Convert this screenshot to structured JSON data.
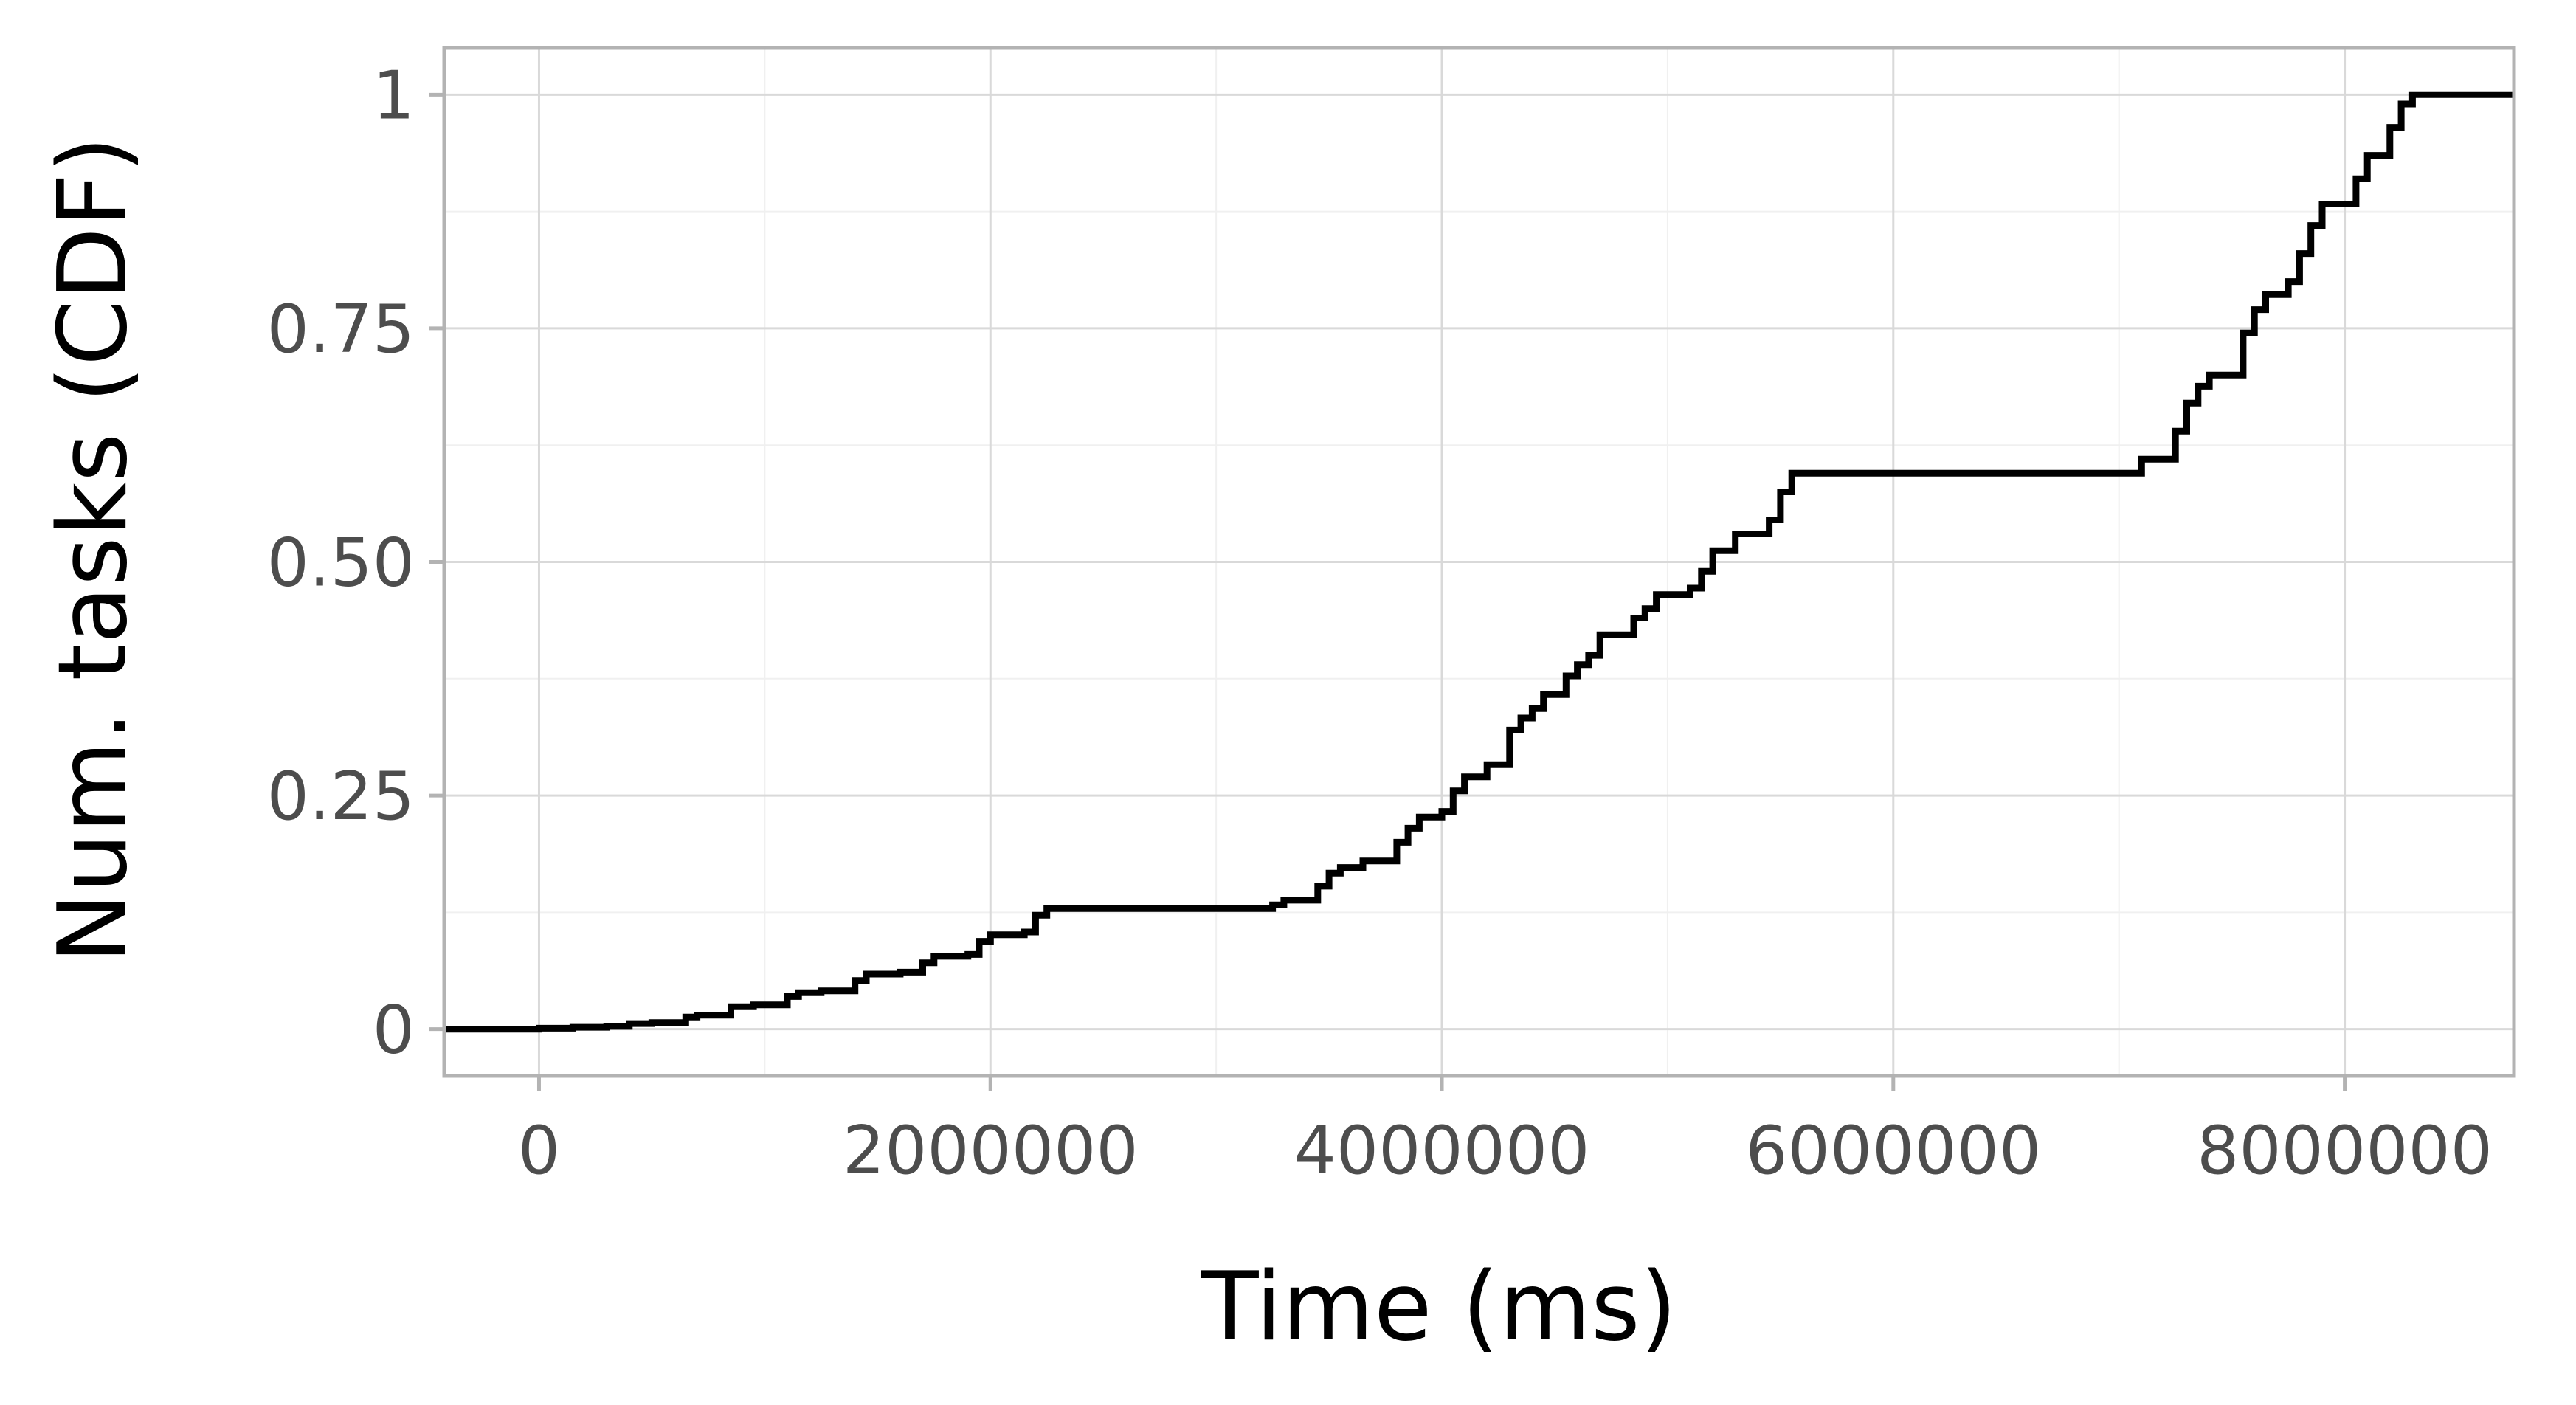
{
  "chart_data": {
    "type": "line",
    "step": true,
    "xlabel": "Time (ms)",
    "ylabel": "Num. tasks (CDF)",
    "xlim": [
      -420000,
      8750000
    ],
    "ylim": [
      -0.05,
      1.05
    ],
    "x_ticks": [
      {
        "value": 0,
        "label": "0"
      },
      {
        "value": 2000000,
        "label": "2000000"
      },
      {
        "value": 4000000,
        "label": "4000000"
      },
      {
        "value": 6000000,
        "label": "6000000"
      },
      {
        "value": 8000000,
        "label": "8000000"
      }
    ],
    "y_ticks": [
      {
        "value": 0,
        "label": "0"
      },
      {
        "value": 0.25,
        "label": "0.25"
      },
      {
        "value": 0.5,
        "label": "0.50"
      },
      {
        "value": 0.75,
        "label": "0.75"
      },
      {
        "value": 1,
        "label": "1"
      }
    ],
    "grid": true,
    "legend": "none",
    "colors": {
      "line": "#000000",
      "grid_major": "#d9d9d9",
      "grid_minor": "#f0f0f0",
      "panel_border": "#b3b3b3",
      "tick_label": "#4d4d4d",
      "axis_title": "#000000",
      "background": "#ffffff"
    },
    "series": [
      {
        "x": [
          -420000,
          0,
          150000,
          300000,
          400000,
          500000,
          650000,
          700000,
          850000,
          950000,
          1100000,
          1150000,
          1250000,
          1400000,
          1450000,
          1600000,
          1700000,
          1750000,
          1900000,
          1950000,
          2000000,
          2150000,
          2200000,
          2250000,
          3250000,
          3300000,
          3450000,
          3500000,
          3550000,
          3650000,
          3800000,
          3850000,
          3900000,
          4000000,
          4050000,
          4100000,
          4200000,
          4300000,
          4350000,
          4400000,
          4450000,
          4550000,
          4600000,
          4650000,
          4700000,
          4850000,
          4900000,
          4950000,
          5100000,
          5150000,
          5200000,
          5300000,
          5450000,
          5500000,
          5550000,
          7100000,
          7250000,
          7300000,
          7350000,
          7400000,
          7550000,
          7600000,
          7650000,
          7750000,
          7800000,
          7850000,
          7900000,
          8050000,
          8100000,
          8200000,
          8250000,
          8300000,
          8750000
        ],
        "y": [
          0.0,
          0.001,
          0.002,
          0.003,
          0.006,
          0.007,
          0.013,
          0.015,
          0.024,
          0.026,
          0.035,
          0.039,
          0.041,
          0.052,
          0.059,
          0.061,
          0.071,
          0.078,
          0.08,
          0.094,
          0.101,
          0.104,
          0.122,
          0.129,
          0.133,
          0.138,
          0.153,
          0.167,
          0.173,
          0.18,
          0.2,
          0.215,
          0.227,
          0.233,
          0.255,
          0.27,
          0.283,
          0.32,
          0.333,
          0.343,
          0.358,
          0.378,
          0.39,
          0.4,
          0.422,
          0.44,
          0.45,
          0.465,
          0.472,
          0.49,
          0.512,
          0.53,
          0.545,
          0.575,
          0.595,
          0.61,
          0.64,
          0.67,
          0.688,
          0.7,
          0.745,
          0.77,
          0.786,
          0.8,
          0.83,
          0.86,
          0.883,
          0.91,
          0.935,
          0.965,
          0.99,
          1.0,
          1.0
        ]
      }
    ]
  }
}
